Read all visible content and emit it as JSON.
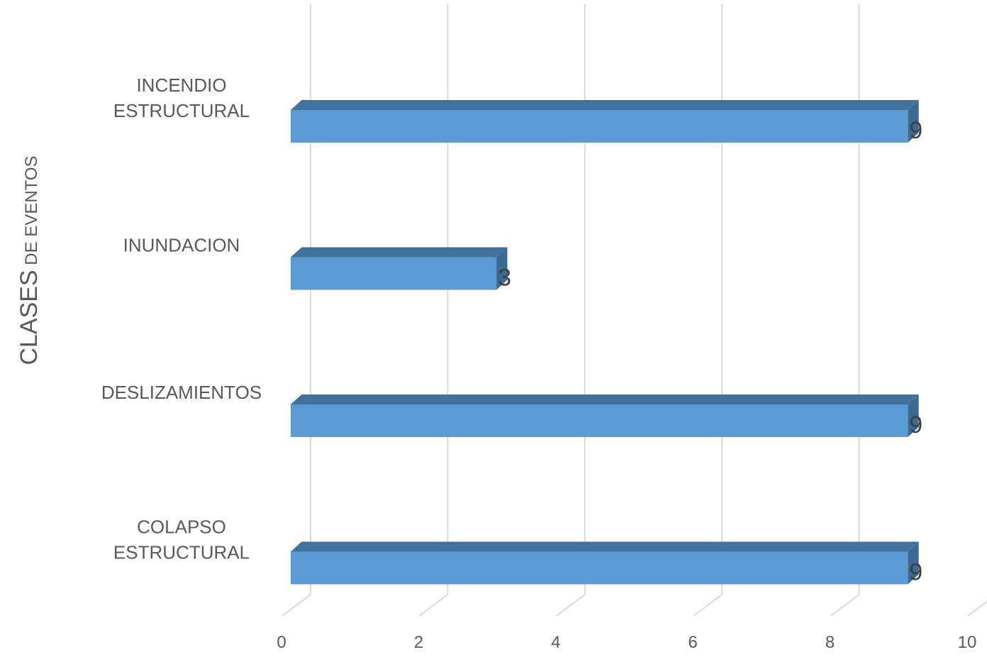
{
  "chart_data": {
    "type": "bar",
    "orientation": "horizontal",
    "style": "3d",
    "title": "",
    "xlabel": "",
    "ylabel_parts": [
      "CLASES",
      " DE EVENTOS"
    ],
    "categories": [
      [
        "INCENDIO",
        "ESTRUCTURAL"
      ],
      [
        "INUNDACION"
      ],
      [
        "DESLIZAMIENTOS"
      ],
      [
        "COLAPSO",
        "ESTRUCTURAL"
      ]
    ],
    "values": [
      9,
      3,
      9,
      9
    ],
    "data_labels": [
      "9",
      "3",
      "9",
      "9"
    ],
    "xlim": [
      0,
      10
    ],
    "xticks": [
      "0",
      "2",
      "4",
      "6",
      "8",
      "10"
    ],
    "grid": true,
    "legend": "none",
    "colors": {
      "bar_front": "#5b9bd5",
      "bar_top": "#41719c",
      "bar_side": "#3b6a94",
      "grid": "#d9d9d9",
      "text": "#595959",
      "label": "#404040"
    }
  }
}
